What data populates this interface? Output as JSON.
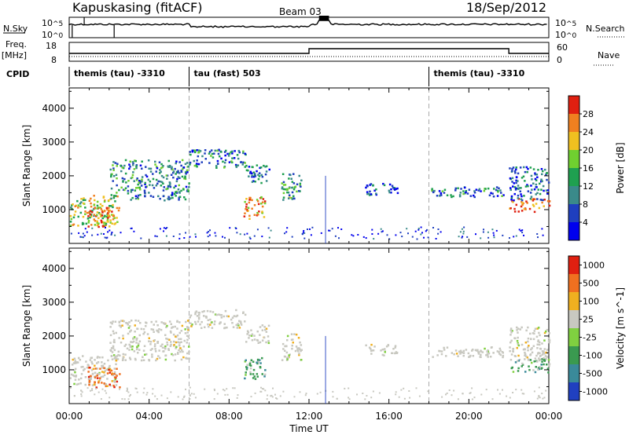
{
  "header": {
    "station": "Kapuskasing (fitACF)",
    "beam": "Beam 03",
    "date": "18/Sep/2012"
  },
  "strips": {
    "nsky_label": "N.Sky",
    "nsky_top": "10^5",
    "nsky_bottom": "10^0",
    "nsearch_label": "N.Search",
    "nsearch_top": "10^5",
    "nsearch_bottom": "10^0",
    "freq_label_line1": "Freq.",
    "freq_label_line2": "[MHz]",
    "freq_top": "18",
    "freq_bottom": "8",
    "nave_label": "Nave",
    "nave_top": "60",
    "nave_bottom": "0",
    "cpid_label": "CPID",
    "cpid_segments": [
      {
        "label": "themis (tau) -3310",
        "start": 0.0
      },
      {
        "label": "tau (fast) 503",
        "start": 6.0
      },
      {
        "label": "themis (tau) -3310",
        "start": 18.0
      }
    ]
  },
  "chart_data": [
    {
      "type": "heatmap",
      "panel": "power",
      "ylabel": "Slant Range [km]",
      "ylim": [
        0,
        4600
      ],
      "yticks": [
        "1000",
        "2000",
        "3000",
        "4000"
      ],
      "xlim": [
        0,
        24
      ],
      "colorbar": {
        "label": "Power [dB]",
        "ticks": [
          "4",
          "8",
          "12",
          "16",
          "20",
          "24",
          "28"
        ],
        "colors": [
          "#0000ee",
          "#1f3fbf",
          "#3a8a8a",
          "#1fa050",
          "#70d030",
          "#f0c020",
          "#f08020",
          "#e02010"
        ]
      },
      "echo_regions": [
        {
          "t0": 0.0,
          "t1": 2.4,
          "r0": 550,
          "r1": 1450,
          "level": 0.6
        },
        {
          "t0": 0.9,
          "t1": 2.5,
          "r0": 500,
          "r1": 1100,
          "level": 0.8
        },
        {
          "t0": 2.0,
          "t1": 6.0,
          "r0": 1300,
          "r1": 2500,
          "level": 0.35
        },
        {
          "t0": 6.0,
          "t1": 8.8,
          "r0": 2250,
          "r1": 2800,
          "level": 0.3
        },
        {
          "t0": 8.8,
          "t1": 10.0,
          "r0": 1800,
          "r1": 2350,
          "level": 0.25
        },
        {
          "t0": 8.7,
          "t1": 9.8,
          "r0": 750,
          "r1": 1400,
          "level": 0.75
        },
        {
          "t0": 10.6,
          "t1": 11.6,
          "r0": 1300,
          "r1": 2100,
          "level": 0.4
        },
        {
          "t0": 14.8,
          "t1": 16.4,
          "r0": 1450,
          "r1": 1800,
          "level": 0.25
        },
        {
          "t0": 18.0,
          "t1": 21.7,
          "r0": 1400,
          "r1": 1700,
          "level": 0.3
        },
        {
          "t0": 22.0,
          "t1": 24.0,
          "r0": 950,
          "r1": 1350,
          "level": 0.85
        },
        {
          "t0": 22.0,
          "t1": 24.0,
          "r0": 1300,
          "r1": 2300,
          "level": 0.25
        }
      ]
    },
    {
      "type": "heatmap",
      "panel": "velocity",
      "ylabel": "Slant Range [km]",
      "ylim": [
        0,
        4600
      ],
      "yticks": [
        "1000",
        "2000",
        "3000",
        "4000"
      ],
      "xlim": [
        0,
        24
      ],
      "xticks": [
        "00:00",
        "04:00",
        "08:00",
        "12:00",
        "16:00",
        "20:00",
        "00:00"
      ],
      "xlabel": "Time UT",
      "colorbar": {
        "label": "Velocity [m s^-1]",
        "ticks": [
          "1000",
          "500",
          "100",
          "25",
          "-25",
          "-100",
          "-500",
          "-1000"
        ],
        "colors": [
          "#2040c0",
          "#3a8a9a",
          "#3a9a50",
          "#80d040",
          "#c8c8c0",
          "#f0b020",
          "#f07020",
          "#e02010"
        ]
      }
    }
  ]
}
